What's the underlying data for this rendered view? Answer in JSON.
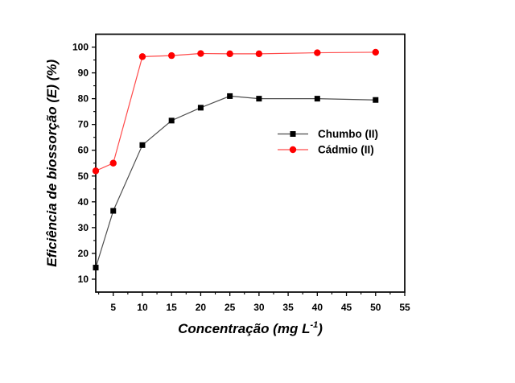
{
  "page": {
    "background": "#ffffff",
    "frame_color": "#000000"
  },
  "chart_data": {
    "type": "line",
    "title": "",
    "xlabel": {
      "pre": "Concentração (mg L",
      "sup": "-1",
      "post": ")"
    },
    "ylabel": "Eficiência de biossorção (E) (%)",
    "xlim": [
      2,
      55
    ],
    "ylim": [
      5,
      105
    ],
    "x_ticks": [
      5,
      10,
      15,
      20,
      25,
      30,
      35,
      40,
      45,
      50,
      55
    ],
    "y_ticks": [
      10,
      20,
      30,
      40,
      50,
      60,
      70,
      80,
      90,
      100
    ],
    "grid": false,
    "legend_position": "inside-right",
    "x": [
      2,
      5,
      10,
      15,
      20,
      25,
      30,
      40,
      50
    ],
    "series": [
      {
        "name": "Chumbo (II)",
        "marker": "square",
        "color": "#000000",
        "line_color": "#4d4d4d",
        "values": [
          14.5,
          36.5,
          62,
          71.5,
          76.5,
          81,
          80,
          80,
          79.5
        ]
      },
      {
        "name": "Cádmio (II)",
        "marker": "circle",
        "color": "#ff0000",
        "line_color": "#ff4a4a",
        "values": [
          52,
          55,
          96.3,
          96.7,
          97.5,
          97.4,
          97.4,
          97.8,
          98
        ]
      }
    ]
  }
}
